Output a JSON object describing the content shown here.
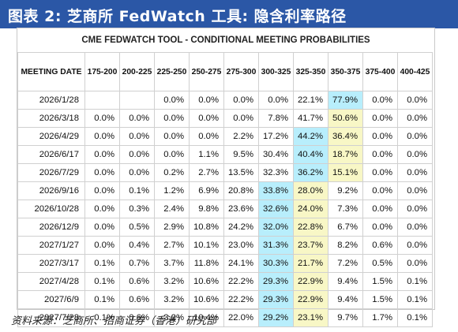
{
  "title": "图表 2: 芝商所 FedWatch 工具: 隐含利率路径",
  "tool_header": "CME FEDWATCH TOOL - CONDITIONAL MEETING PROBABILITIES",
  "columns": [
    "MEETING DATE",
    "175-200",
    "200-225",
    "225-250",
    "250-275",
    "275-300",
    "300-325",
    "325-350",
    "350-375",
    "375-400",
    "400-425"
  ],
  "rows": [
    {
      "date": "2026/1/28",
      "values": [
        "",
        "",
        "0.0%",
        "0.0%",
        "0.0%",
        "0.0%",
        "22.1%",
        "77.9%",
        "0.0%",
        "0.0%"
      ],
      "cyan": 7,
      "yellow": null
    },
    {
      "date": "2026/3/18",
      "values": [
        "0.0%",
        "0.0%",
        "0.0%",
        "0.0%",
        "0.0%",
        "7.8%",
        "41.7%",
        "50.6%",
        "0.0%",
        "0.0%"
      ],
      "cyan": null,
      "yellow": 7
    },
    {
      "date": "2026/4/29",
      "values": [
        "0.0%",
        "0.0%",
        "0.0%",
        "0.0%",
        "2.2%",
        "17.2%",
        "44.2%",
        "36.4%",
        "0.0%",
        "0.0%"
      ],
      "cyan": 6,
      "yellow": 7
    },
    {
      "date": "2026/6/17",
      "values": [
        "0.0%",
        "0.0%",
        "0.0%",
        "1.1%",
        "9.5%",
        "30.4%",
        "40.4%",
        "18.7%",
        "0.0%",
        "0.0%"
      ],
      "cyan": 6,
      "yellow": 7
    },
    {
      "date": "2026/7/29",
      "values": [
        "0.0%",
        "0.0%",
        "0.2%",
        "2.7%",
        "13.5%",
        "32.3%",
        "36.2%",
        "15.1%",
        "0.0%",
        "0.0%"
      ],
      "cyan": 6,
      "yellow": 7
    },
    {
      "date": "2026/9/16",
      "values": [
        "0.0%",
        "0.1%",
        "1.2%",
        "6.9%",
        "20.8%",
        "33.8%",
        "28.0%",
        "9.2%",
        "0.0%",
        "0.0%"
      ],
      "cyan": 5,
      "yellow": 6
    },
    {
      "date": "2026/10/28",
      "values": [
        "0.0%",
        "0.3%",
        "2.4%",
        "9.8%",
        "23.6%",
        "32.6%",
        "24.0%",
        "7.3%",
        "0.0%",
        "0.0%"
      ],
      "cyan": 5,
      "yellow": 6
    },
    {
      "date": "2026/12/9",
      "values": [
        "0.0%",
        "0.5%",
        "2.9%",
        "10.8%",
        "24.2%",
        "32.0%",
        "22.8%",
        "6.7%",
        "0.0%",
        "0.0%"
      ],
      "cyan": 5,
      "yellow": 6
    },
    {
      "date": "2027/1/27",
      "values": [
        "0.0%",
        "0.4%",
        "2.7%",
        "10.1%",
        "23.0%",
        "31.3%",
        "23.7%",
        "8.2%",
        "0.6%",
        "0.0%"
      ],
      "cyan": 5,
      "yellow": 6
    },
    {
      "date": "2027/3/17",
      "values": [
        "0.1%",
        "0.7%",
        "3.7%",
        "11.8%",
        "24.1%",
        "30.3%",
        "21.7%",
        "7.2%",
        "0.5%",
        "0.0%"
      ],
      "cyan": 5,
      "yellow": 6
    },
    {
      "date": "2027/4/28",
      "values": [
        "0.1%",
        "0.6%",
        "3.2%",
        "10.6%",
        "22.2%",
        "29.3%",
        "22.9%",
        "9.4%",
        "1.5%",
        "0.1%"
      ],
      "cyan": 5,
      "yellow": 6
    },
    {
      "date": "2027/6/9",
      "values": [
        "0.1%",
        "0.6%",
        "3.2%",
        "10.6%",
        "22.2%",
        "29.3%",
        "22.9%",
        "9.4%",
        "1.5%",
        "0.1%"
      ],
      "cyan": 5,
      "yellow": 6
    },
    {
      "date": "2027/7/28",
      "values": [
        "0.1%",
        "0.6%",
        "3.2%",
        "10.4%",
        "22.0%",
        "29.2%",
        "23.1%",
        "9.7%",
        "1.7%",
        "0.1%"
      ],
      "cyan": 5,
      "yellow": 6
    }
  ],
  "source": "资料来源：芝商所、招商证券（香港）研究部",
  "colors": {
    "title_bar": "#2b57a6",
    "highlight_cyan": "#b8eefc",
    "highlight_yellow": "#f8f7c6"
  }
}
